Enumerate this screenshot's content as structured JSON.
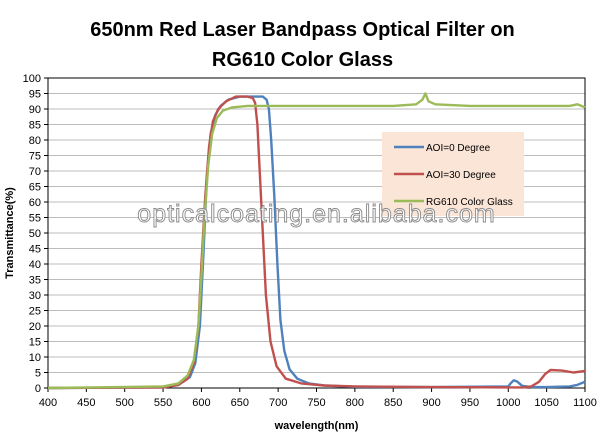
{
  "chart_data": {
    "type": "line",
    "title": "650nm Red Laser Bandpass Optical Filter on",
    "subtitle": "RG610 Color Glass",
    "xlabel": "wavelength(nm)",
    "ylabel": "Transmittance(%)",
    "xlim": [
      400,
      1100
    ],
    "ylim": [
      0,
      100
    ],
    "x_ticks": [
      "400",
      "450",
      "500",
      "550",
      "600",
      "650",
      "700",
      "750",
      "800",
      "850",
      "900",
      "950",
      "1000",
      "1050",
      "1100"
    ],
    "y_ticks": [
      "0",
      "5",
      "10",
      "15",
      "20",
      "25",
      "30",
      "35",
      "40",
      "45",
      "50",
      "55",
      "60",
      "65",
      "70",
      "75",
      "80",
      "85",
      "90",
      "95",
      "100"
    ],
    "grid": "horizontal",
    "legend_position": "right",
    "series": [
      {
        "name": "AOI=0 Degree",
        "color": "#4f81bd",
        "points": [
          [
            400,
            0
          ],
          [
            550,
            0.2
          ],
          [
            570,
            1
          ],
          [
            585,
            3.5
          ],
          [
            592,
            8
          ],
          [
            598,
            20
          ],
          [
            603,
            45
          ],
          [
            607,
            68
          ],
          [
            612,
            82
          ],
          [
            618,
            88
          ],
          [
            625,
            91
          ],
          [
            635,
            93
          ],
          [
            650,
            94
          ],
          [
            665,
            94
          ],
          [
            680,
            94
          ],
          [
            685,
            93
          ],
          [
            688,
            90
          ],
          [
            691,
            80
          ],
          [
            695,
            62
          ],
          [
            699,
            40
          ],
          [
            703,
            22
          ],
          [
            708,
            12
          ],
          [
            715,
            6
          ],
          [
            725,
            3
          ],
          [
            740,
            1.5
          ],
          [
            760,
            0.8
          ],
          [
            800,
            0.4
          ],
          [
            900,
            0.3
          ],
          [
            1000,
            0.5
          ],
          [
            1003,
            1.5
          ],
          [
            1007,
            2.5
          ],
          [
            1012,
            2
          ],
          [
            1018,
            0.7
          ],
          [
            1030,
            0.3
          ],
          [
            1050,
            0.3
          ],
          [
            1080,
            0.5
          ],
          [
            1090,
            1
          ],
          [
            1100,
            2
          ]
        ]
      },
      {
        "name": "AOI=30 Degree",
        "color": "#c0504d",
        "points": [
          [
            400,
            0
          ],
          [
            550,
            0.2
          ],
          [
            570,
            1
          ],
          [
            582,
            3
          ],
          [
            590,
            8
          ],
          [
            596,
            20
          ],
          [
            600,
            40
          ],
          [
            605,
            62
          ],
          [
            610,
            78
          ],
          [
            615,
            86
          ],
          [
            622,
            90
          ],
          [
            632,
            92.5
          ],
          [
            645,
            94
          ],
          [
            660,
            94
          ],
          [
            667,
            93.5
          ],
          [
            670,
            92
          ],
          [
            673,
            85
          ],
          [
            676,
            70
          ],
          [
            680,
            50
          ],
          [
            684,
            30
          ],
          [
            690,
            15
          ],
          [
            698,
            7
          ],
          [
            710,
            3
          ],
          [
            730,
            1.5
          ],
          [
            760,
            0.8
          ],
          [
            800,
            0.5
          ],
          [
            900,
            0.3
          ],
          [
            1000,
            0.2
          ],
          [
            1020,
            0.2
          ],
          [
            1030,
            0.5
          ],
          [
            1040,
            2
          ],
          [
            1048,
            4.5
          ],
          [
            1055,
            5.8
          ],
          [
            1070,
            5.6
          ],
          [
            1085,
            5
          ],
          [
            1100,
            5.5
          ]
        ]
      },
      {
        "name": "RG610 Color Glass",
        "color": "#9bbb59",
        "points": [
          [
            400,
            0
          ],
          [
            550,
            0.5
          ],
          [
            570,
            1.5
          ],
          [
            582,
            4
          ],
          [
            590,
            9
          ],
          [
            596,
            20
          ],
          [
            600,
            36
          ],
          [
            604,
            55
          ],
          [
            609,
            72
          ],
          [
            614,
            82
          ],
          [
            620,
            87
          ],
          [
            628,
            89.5
          ],
          [
            640,
            90.5
          ],
          [
            660,
            91
          ],
          [
            700,
            91
          ],
          [
            750,
            91
          ],
          [
            800,
            91
          ],
          [
            850,
            91
          ],
          [
            880,
            91.5
          ],
          [
            888,
            93
          ],
          [
            892,
            95
          ],
          [
            896,
            92.5
          ],
          [
            905,
            91.5
          ],
          [
            950,
            91
          ],
          [
            1000,
            91
          ],
          [
            1050,
            91
          ],
          [
            1080,
            91
          ],
          [
            1090,
            91.5
          ],
          [
            1100,
            90.5
          ]
        ]
      }
    ],
    "annotation": "opticalcoating.en.alibaba.com"
  }
}
